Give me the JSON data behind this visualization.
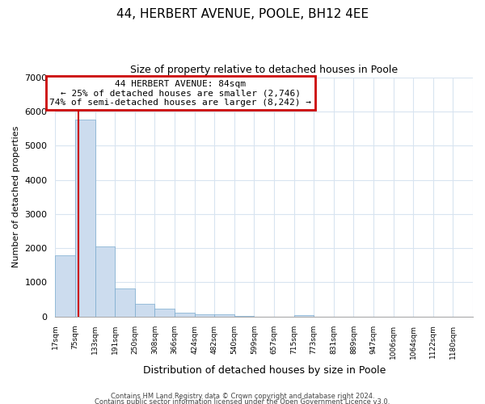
{
  "title_line1": "44, HERBERT AVENUE, POOLE, BH12 4EE",
  "title_line2": "Size of property relative to detached houses in Poole",
  "xlabel": "Distribution of detached houses by size in Poole",
  "ylabel": "Number of detached properties",
  "bin_labels": [
    "17sqm",
    "75sqm",
    "133sqm",
    "191sqm",
    "250sqm",
    "308sqm",
    "366sqm",
    "424sqm",
    "482sqm",
    "540sqm",
    "599sqm",
    "657sqm",
    "715sqm",
    "773sqm",
    "831sqm",
    "889sqm",
    "947sqm",
    "1006sqm",
    "1064sqm",
    "1122sqm",
    "1180sqm"
  ],
  "bar_heights": [
    1780,
    5760,
    2050,
    820,
    370,
    225,
    110,
    60,
    55,
    10,
    5,
    0,
    50,
    0,
    0,
    0,
    0,
    0,
    0,
    0,
    0
  ],
  "bar_color": "#ccdcee",
  "bar_edge_color": "#7aaace",
  "grid_color": "#d8e4f0",
  "ylim": [
    0,
    7000
  ],
  "yticks": [
    0,
    1000,
    2000,
    3000,
    4000,
    5000,
    6000,
    7000
  ],
  "annotation_text": "44 HERBERT AVENUE: 84sqm\n← 25% of detached houses are smaller (2,746)\n74% of semi-detached houses are larger (8,242) →",
  "annotation_box_color": "#ffffff",
  "annotation_box_edge": "#cc0000",
  "property_line_color": "#cc0000",
  "footer_line1": "Contains HM Land Registry data © Crown copyright and database right 2024.",
  "footer_line2": "Contains public sector information licensed under the Open Government Licence v3.0.",
  "bin_edges": [
    17,
    75,
    133,
    191,
    250,
    308,
    366,
    424,
    482,
    540,
    599,
    657,
    715,
    773,
    831,
    889,
    947,
    1006,
    1064,
    1122,
    1180
  ],
  "property_sqm": 84
}
